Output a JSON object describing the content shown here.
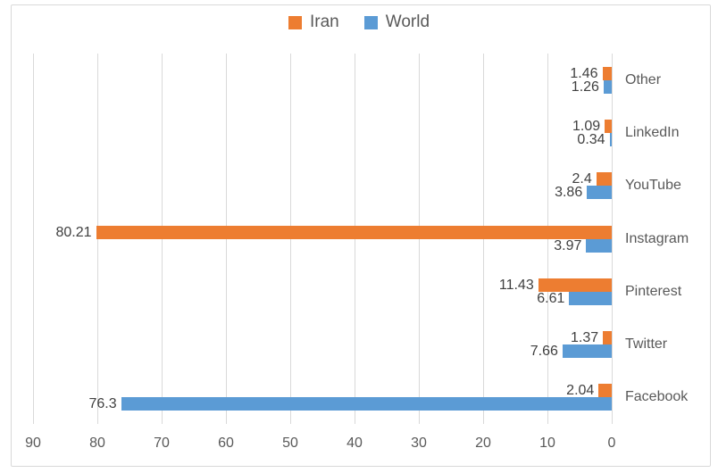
{
  "chart_data": {
    "type": "bar",
    "orientation": "horizontal",
    "axis_reversed": true,
    "title": "",
    "xlabel": "",
    "ylabel": "",
    "xlim": [
      0,
      90
    ],
    "grid": true,
    "legend_position": "top",
    "categories": [
      "Other",
      "LinkedIn",
      "YouTube",
      "Instagram",
      "Pinterest",
      "Twitter",
      "Facebook"
    ],
    "series": [
      {
        "name": "Iran",
        "color": "#ED7D31",
        "values": [
          1.46,
          1.09,
          2.4,
          80.21,
          11.43,
          1.37,
          2.04
        ]
      },
      {
        "name": "World",
        "color": "#5B9BD5",
        "values": [
          1.26,
          0.34,
          3.86,
          3.97,
          6.61,
          7.66,
          76.3
        ]
      }
    ],
    "x_ticks": [
      "90",
      "80",
      "70",
      "60",
      "50",
      "40",
      "30",
      "20",
      "10",
      "0"
    ]
  }
}
